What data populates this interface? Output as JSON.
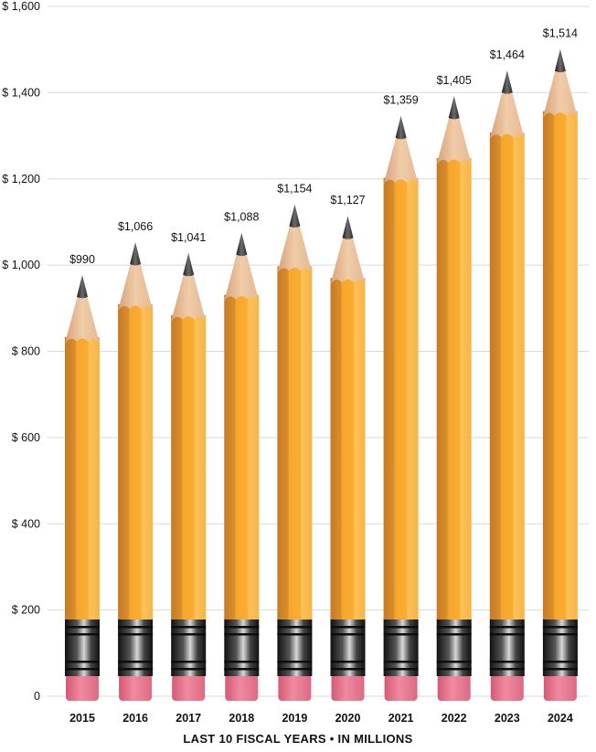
{
  "chart_data": {
    "type": "bar",
    "style": "pencil bars",
    "categories": [
      "2015",
      "2016",
      "2017",
      "2018",
      "2019",
      "2020",
      "2021",
      "2022",
      "2023",
      "2024"
    ],
    "values": [
      990,
      1066,
      1041,
      1088,
      1154,
      1127,
      1359,
      1405,
      1464,
      1514
    ],
    "value_labels": [
      "$990",
      "$1,066",
      "$1,041",
      "$1,088",
      "$1,154",
      "$1,127",
      "$1,359",
      "$1,405",
      "$1,464",
      "$1,514"
    ],
    "ylim": [
      0,
      1600
    ],
    "y_ticks": [
      0,
      200,
      400,
      600,
      800,
      1000,
      1200,
      1400,
      1600
    ],
    "y_tick_labels": [
      "0",
      "$ 200",
      "$ 400",
      "$ 600",
      "$ 800",
      "$ 1,000",
      "$ 1,200",
      "$ 1,400",
      "$ 1,600"
    ],
    "xlabel": "LAST 10 FISCAL YEARS • IN MILLIONS",
    "grid": true,
    "colors": {
      "pencil_body": "#f9ab2e",
      "pencil_body_dark": "#d4862a",
      "pencil_body_light": "#fcc760",
      "wood": "#e9bf98",
      "graphite": "#3a3a3a",
      "ferrule": "#2a2a2a",
      "eraser": "#e46f86",
      "grid": "#d9d9d9"
    }
  }
}
